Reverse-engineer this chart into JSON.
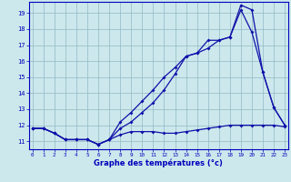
{
  "title": "Graphe des températures (°c)",
  "x": [
    0,
    1,
    2,
    3,
    4,
    5,
    6,
    7,
    8,
    9,
    10,
    11,
    12,
    13,
    14,
    15,
    16,
    17,
    18,
    19,
    20,
    21,
    22,
    23
  ],
  "line1": [
    11.8,
    11.8,
    11.5,
    11.1,
    11.1,
    11.1,
    10.8,
    11.1,
    11.4,
    11.6,
    11.6,
    11.6,
    11.5,
    11.5,
    11.6,
    11.7,
    11.8,
    11.9,
    12.0,
    12.0,
    12.0,
    12.0,
    12.0,
    11.9
  ],
  "line2": [
    11.8,
    11.8,
    11.5,
    11.1,
    11.1,
    11.1,
    10.8,
    11.1,
    11.8,
    12.2,
    12.8,
    13.4,
    14.2,
    15.2,
    16.3,
    16.5,
    16.8,
    17.3,
    17.5,
    19.5,
    19.2,
    15.3,
    13.1,
    12.0
  ],
  "line3": [
    11.8,
    11.8,
    11.5,
    11.1,
    11.1,
    11.1,
    10.8,
    11.1,
    12.2,
    12.8,
    13.5,
    14.2,
    15.0,
    15.6,
    16.3,
    16.5,
    17.3,
    17.3,
    17.5,
    19.2,
    17.8,
    15.3,
    13.1,
    12.0
  ],
  "line_color": "#1010aa",
  "bg_color": "#cce8ec",
  "grid_color": "#90b8c4",
  "axis_color": "#0000bb",
  "ylim": [
    10.5,
    19.7
  ],
  "yticks": [
    11,
    12,
    13,
    14,
    15,
    16,
    17,
    18,
    19
  ],
  "xticks": [
    0,
    1,
    2,
    3,
    4,
    5,
    6,
    7,
    8,
    9,
    10,
    11,
    12,
    13,
    14,
    15,
    16,
    17,
    18,
    19,
    20,
    21,
    22,
    23
  ]
}
